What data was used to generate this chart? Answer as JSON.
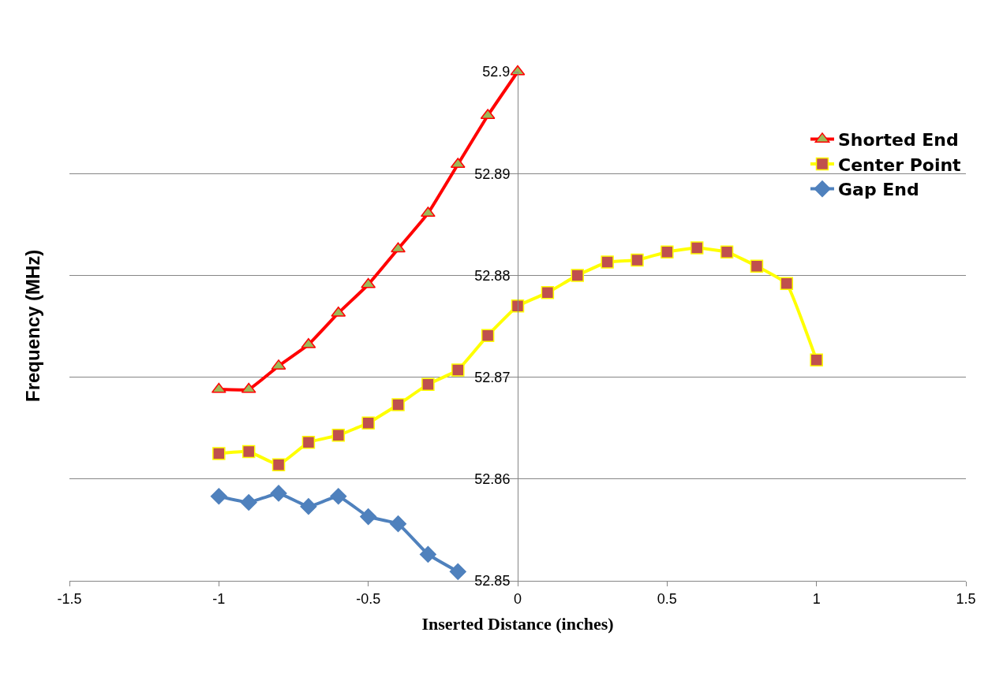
{
  "chart_data": {
    "type": "line",
    "xlabel": "Inserted Distance (inches)",
    "ylabel": "Frequency (MHz)",
    "xlim": [
      -1.5,
      1.5
    ],
    "xticks": [
      -1.5,
      -1,
      -0.5,
      0,
      0.5,
      1,
      1.5
    ],
    "ylim": [
      52.85,
      52.9
    ],
    "yticks": [
      52.85,
      52.86,
      52.87,
      52.88,
      52.89,
      52.9
    ],
    "grid": "y",
    "legend": "top right",
    "series": [
      {
        "name": "Shorted End",
        "color": "#ff0000",
        "marker": "triangle",
        "x": [
          -1,
          -0.9,
          -0.8,
          -0.7,
          -0.6,
          -0.5,
          -0.4,
          -0.3,
          -0.2,
          -0.1,
          0
        ],
        "values": [
          52.8688,
          52.8688,
          52.8711,
          52.8732,
          52.8763,
          52.8791,
          52.8826,
          52.8861,
          52.8909,
          52.8957,
          52.9
        ]
      },
      {
        "name": "Center Point",
        "color": "#ffff00",
        "marker": "square",
        "x": [
          -1,
          -0.9,
          -0.8,
          -0.7,
          -0.6,
          -0.5,
          -0.4,
          -0.3,
          -0.2,
          -0.1,
          0,
          0.1,
          0.2,
          0.3,
          0.4,
          0.5,
          0.6,
          0.7,
          0.8,
          0.9,
          1
        ],
        "values": [
          52.8625,
          52.8627,
          52.8614,
          52.8636,
          52.8643,
          52.8655,
          52.8673,
          52.8693,
          52.8707,
          52.8741,
          52.877,
          52.8783,
          52.88,
          52.8813,
          52.8815,
          52.8823,
          52.8827,
          52.8823,
          52.8809,
          52.8792,
          52.8717
        ]
      },
      {
        "name": "Gap End",
        "color": "#4f81bd",
        "marker": "diamond",
        "x": [
          -1,
          -0.9,
          -0.8,
          -0.7,
          -0.6,
          -0.5,
          -0.4,
          -0.3,
          -0.2
        ],
        "values": [
          52.8583,
          52.8577,
          52.8586,
          52.8573,
          52.8583,
          52.8563,
          52.8556,
          52.8526,
          52.8509
        ]
      }
    ]
  }
}
